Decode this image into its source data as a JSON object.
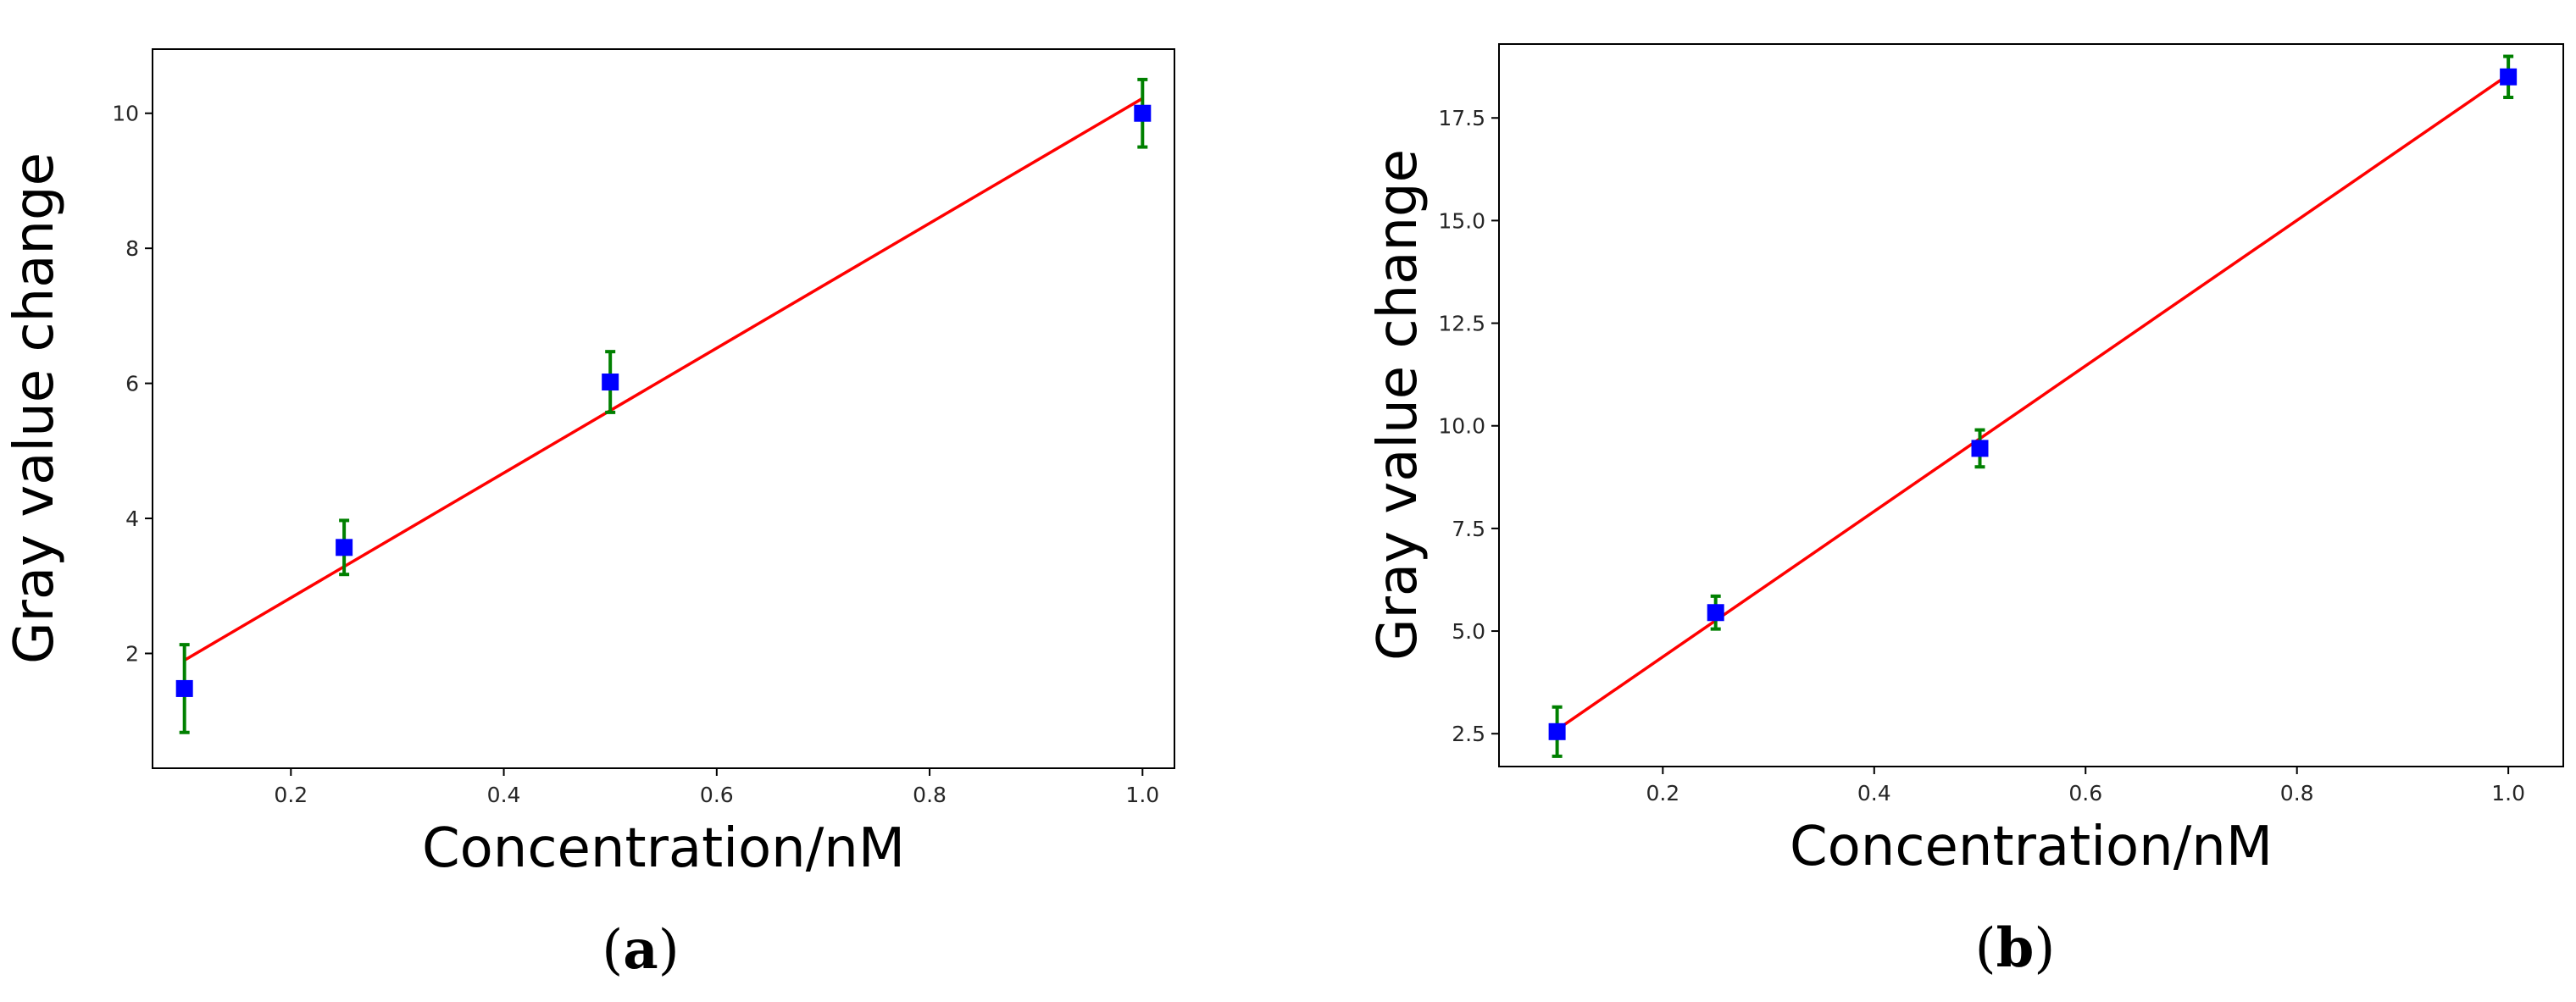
{
  "chart_data": [
    {
      "type": "scatter",
      "panel": "a",
      "xlabel": "Concentration/nM",
      "ylabel": "Gray value change",
      "xlim": [
        0.07,
        1.03
      ],
      "ylim": [
        0.3,
        10.95
      ],
      "xticks": [
        0.2,
        0.4,
        0.6,
        0.8,
        1.0
      ],
      "xtick_labels": [
        "0.2",
        "0.4",
        "0.6",
        "0.8",
        "1.0"
      ],
      "yticks": [
        2,
        4,
        6,
        8,
        10
      ],
      "ytick_labels": [
        "2",
        "4",
        "6",
        "8",
        "10"
      ],
      "series": [
        {
          "kind": "points",
          "x": [
            0.1,
            0.25,
            0.5,
            1.0
          ],
          "y": [
            1.48,
            3.57,
            6.02,
            10.0
          ],
          "yerr": [
            0.65,
            0.4,
            0.45,
            0.5
          ],
          "marker_color": "#0000ff",
          "errorbar_color": "#008000"
        },
        {
          "kind": "fit",
          "x": [
            0.1,
            1.0
          ],
          "y": [
            1.9,
            10.22
          ],
          "color": "#ff0000"
        }
      ],
      "grid": false
    },
    {
      "type": "scatter",
      "panel": "b",
      "xlabel": "Concentration/nM",
      "ylabel": "Gray value change",
      "xlim": [
        0.045,
        1.052
      ],
      "ylim": [
        1.7,
        19.3
      ],
      "xticks": [
        0.2,
        0.4,
        0.6,
        0.8,
        1.0
      ],
      "xtick_labels": [
        "0.2",
        "0.4",
        "0.6",
        "0.8",
        "1.0"
      ],
      "yticks": [
        2.5,
        5.0,
        7.5,
        10.0,
        12.5,
        15.0,
        17.5
      ],
      "ytick_labels": [
        "2.5",
        "5.0",
        "7.5",
        "10.0",
        "12.5",
        "15.0",
        "17.5"
      ],
      "series": [
        {
          "kind": "points",
          "x": [
            0.1,
            0.25,
            0.5,
            1.0
          ],
          "y": [
            2.55,
            5.45,
            9.45,
            18.5
          ],
          "yerr": [
            0.6,
            0.4,
            0.45,
            0.5
          ],
          "marker_color": "#0000ff",
          "errorbar_color": "#008000"
        },
        {
          "kind": "fit",
          "x": [
            0.1,
            1.0
          ],
          "y": [
            2.6,
            18.55
          ],
          "color": "#ff0000"
        }
      ],
      "grid": false
    }
  ]
}
